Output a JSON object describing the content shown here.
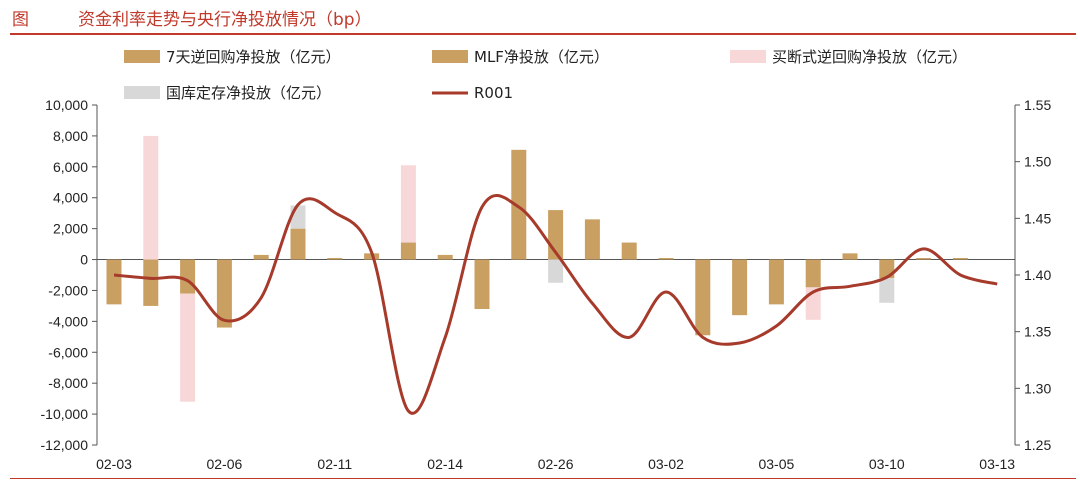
{
  "header": {
    "label": "图",
    "title": "资金利率走势与央行净投放情况（bp）"
  },
  "chart_data": {
    "type": "bar",
    "xlabel": "",
    "ylabel_left": "",
    "ylabel_right": "",
    "ylim_left": [
      -12000,
      10000
    ],
    "yticks_left": [
      10000,
      8000,
      6000,
      4000,
      2000,
      0,
      -2000,
      -4000,
      -6000,
      -8000,
      -10000,
      -12000
    ],
    "ylim_right": [
      1.25,
      1.55
    ],
    "yticks_right": [
      1.55,
      1.5,
      1.45,
      1.4,
      1.35,
      1.3,
      1.25
    ],
    "x_tick_labels": [
      "02-03",
      "02-06",
      "02-11",
      "02-14",
      "02-26",
      "03-02",
      "03-05",
      "03-10",
      "03-13"
    ],
    "x_tick_index": [
      0,
      3,
      6,
      9,
      12,
      15,
      18,
      21,
      24
    ],
    "legend_placement": "top",
    "colors": {
      "repo7": "#c9a062",
      "mlf": "#c9a062",
      "outright": "#f8d7d9",
      "treasury": "#d8d8d8",
      "r001": "#a63a2b"
    },
    "series": [
      {
        "key": "repo7",
        "name": "7天逆回购净投放（亿元）",
        "values": [
          -2900,
          -3000,
          -2200,
          -4400,
          300,
          2000,
          100,
          400,
          1100,
          300,
          -3200,
          7100,
          3200,
          2600,
          1100,
          100,
          -4900,
          -3600,
          -2900,
          -1800,
          400,
          -1200,
          100,
          100,
          0
        ]
      },
      {
        "key": "mlf",
        "name": "MLF净投放（亿元）",
        "values": [
          0,
          0,
          0,
          0,
          0,
          0,
          0,
          0,
          0,
          0,
          0,
          0,
          0,
          0,
          0,
          0,
          0,
          0,
          0,
          0,
          0,
          0,
          0,
          0,
          0
        ]
      },
      {
        "key": "outright",
        "name": "买断式逆回购净投放（亿元）",
        "values": [
          0,
          8000,
          -7000,
          0,
          0,
          0,
          0,
          0,
          5000,
          0,
          0,
          0,
          0,
          0,
          0,
          0,
          0,
          0,
          0,
          -2100,
          0,
          0,
          0,
          0,
          0
        ]
      },
      {
        "key": "treasury",
        "name": "国库定存净投放（亿元）",
        "values": [
          0,
          0,
          0,
          0,
          0,
          1500,
          0,
          0,
          0,
          0,
          0,
          0,
          -1500,
          0,
          0,
          0,
          0,
          0,
          0,
          0,
          0,
          -1600,
          0,
          0,
          0
        ]
      },
      {
        "key": "r001",
        "name": "R001",
        "axis": "right",
        "values": [
          1.4,
          1.397,
          1.395,
          1.36,
          1.38,
          1.462,
          1.455,
          1.42,
          1.28,
          1.345,
          1.46,
          1.46,
          1.42,
          1.375,
          1.345,
          1.385,
          1.345,
          1.34,
          1.355,
          1.385,
          1.39,
          1.398,
          1.423,
          1.4,
          1.392
        ]
      }
    ]
  }
}
